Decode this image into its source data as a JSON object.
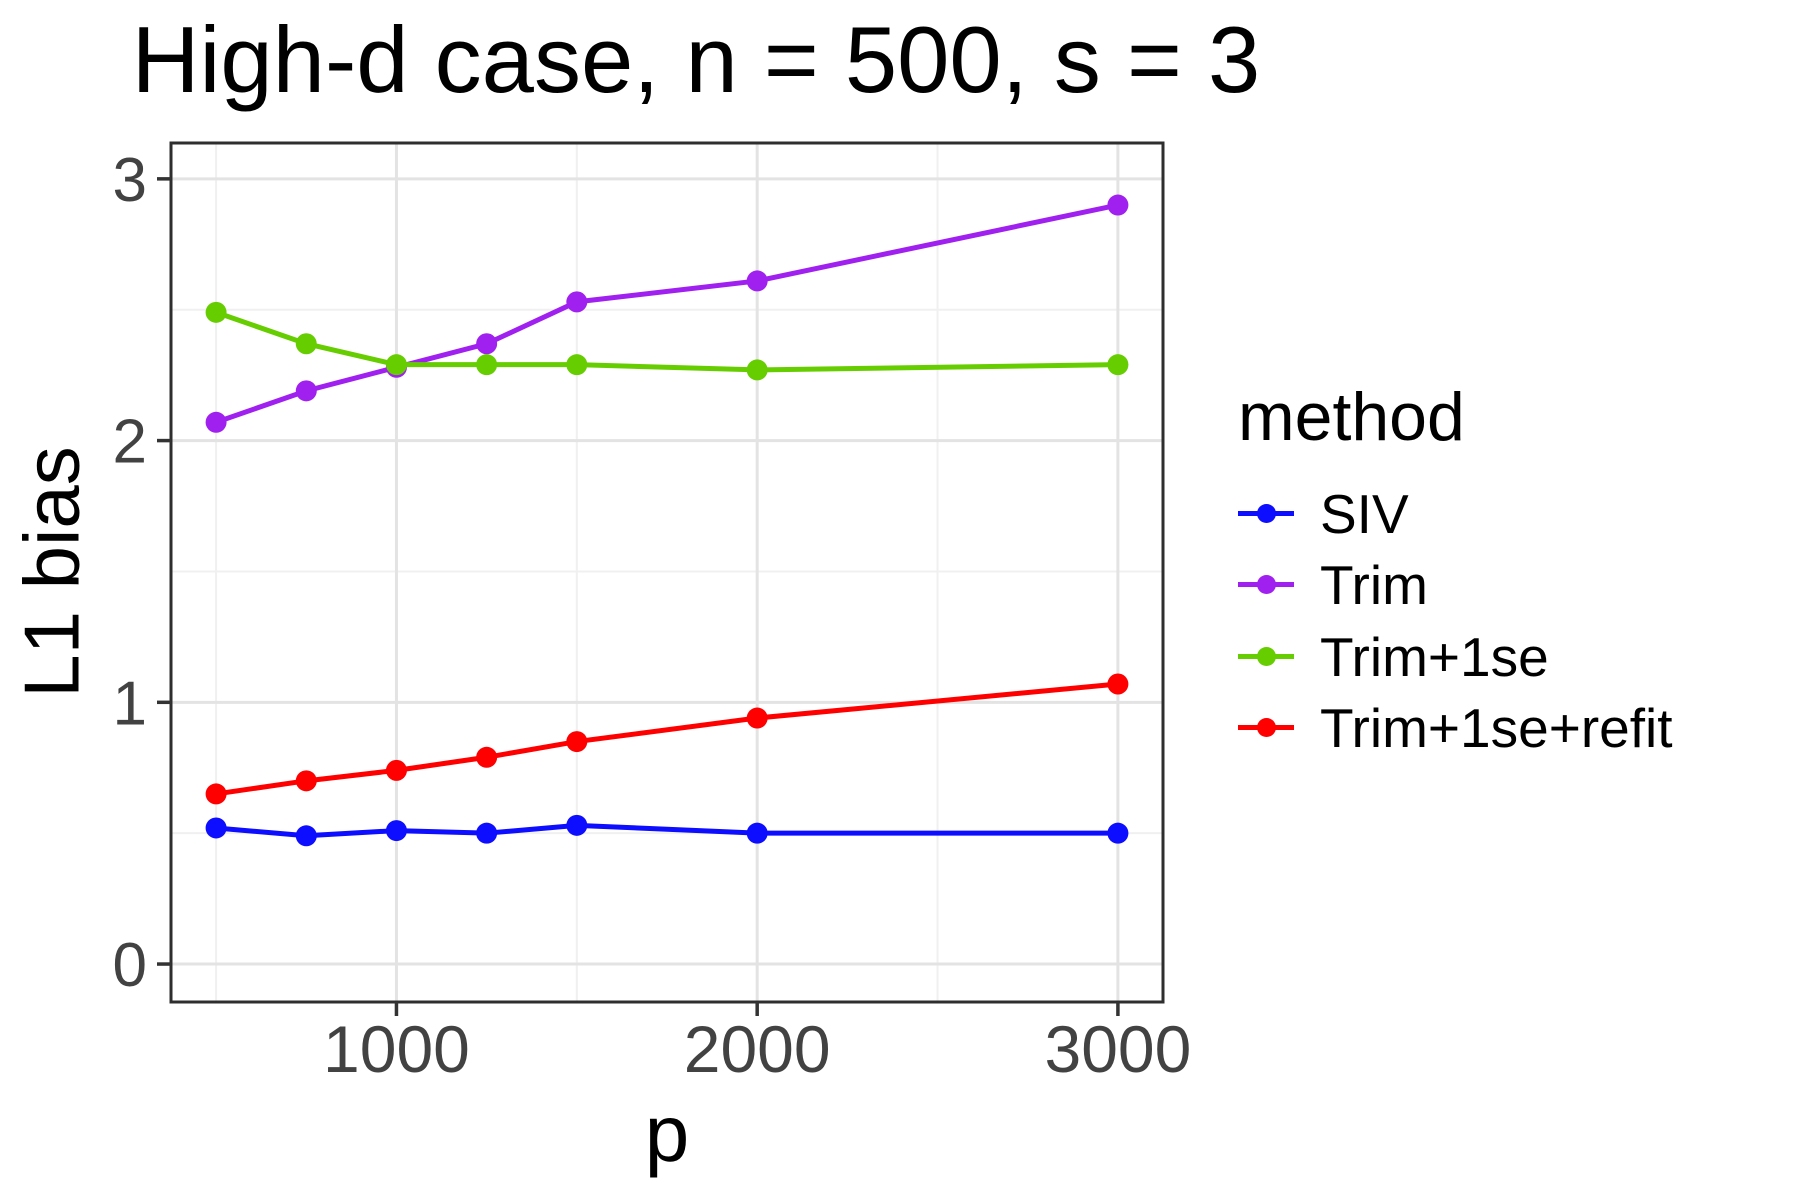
{
  "chart_data": {
    "type": "line",
    "title": "High-d case, n = 500, s = 3",
    "xlabel": "p",
    "ylabel": "L1 bias",
    "x": [
      500,
      750,
      1000,
      1250,
      1500,
      2000,
      3000
    ],
    "series": [
      {
        "name": "SIV",
        "color": "#0D0DFF",
        "values": [
          0.52,
          0.49,
          0.51,
          0.5,
          0.53,
          0.5,
          0.5
        ]
      },
      {
        "name": "Trim",
        "color": "#A020F0",
        "values": [
          2.07,
          2.19,
          2.28,
          2.37,
          2.53,
          2.61,
          2.9
        ]
      },
      {
        "name": "Trim+1se",
        "color": "#66CD00",
        "values": [
          2.49,
          2.37,
          2.29,
          2.29,
          2.29,
          2.27,
          2.29
        ]
      },
      {
        "name": "Trim+1se+refit",
        "color": "#FF0000",
        "values": [
          0.65,
          0.7,
          0.74,
          0.79,
          0.85,
          0.94,
          1.07
        ]
      }
    ],
    "xlim": [
      375,
      3125
    ],
    "ylim": [
      -0.145,
      3.137
    ],
    "x_ticks": [
      1000,
      2000,
      3000
    ],
    "x_minor_ticks": [
      500,
      1500,
      2500
    ],
    "y_ticks": [
      0,
      1,
      2,
      3
    ],
    "y_minor_ticks": [
      0.5,
      1.5,
      2.5
    ],
    "grid": true,
    "legend_position": "right"
  },
  "legend": {
    "title": "method",
    "items": [
      {
        "label": "SIV"
      },
      {
        "label": "Trim"
      },
      {
        "label": "Trim+1se"
      },
      {
        "label": "Trim+1se+refit"
      }
    ]
  },
  "colors": {
    "grid_major": "#E3E3E3",
    "grid_minor": "#F0F0F0",
    "panel_border": "#2E2E2E",
    "tick_mark": "#333333",
    "tick_label": "#424242"
  }
}
